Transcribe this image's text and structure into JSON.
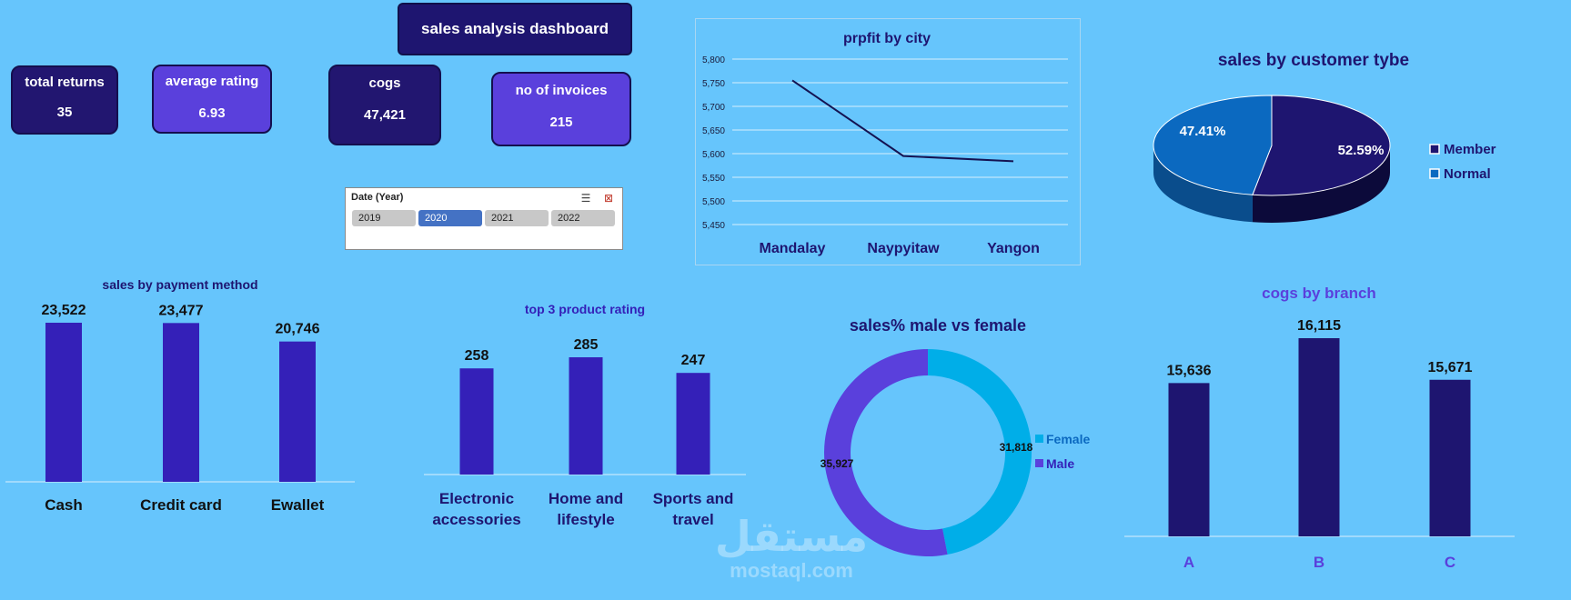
{
  "dashboard_title": "sales analysis dashboard",
  "kpis": {
    "total_returns": {
      "label": "total returns",
      "value": "35"
    },
    "average_rating": {
      "label": "average rating",
      "value": "6.93"
    },
    "cogs": {
      "label": "cogs",
      "value": "47,421"
    },
    "no_of_invoices": {
      "label": "no of invoices",
      "value": "215"
    }
  },
  "slicer": {
    "header": "Date (Year)",
    "options": [
      "2019",
      "2020",
      "2021",
      "2022"
    ],
    "selected": "2020"
  },
  "watermark": {
    "arabic": "مستقل",
    "latin": "mostaql.com"
  },
  "colors": {
    "dark_navy": "#221670",
    "purple": "#5a40dc",
    "bar_blue": "#3420b8",
    "cyan": "#00aee8",
    "normal_blue": "#0b69c0"
  },
  "chart_data": [
    {
      "id": "profit_by_city",
      "type": "line",
      "title": "prpfit by city",
      "categories": [
        "Mandalay",
        "Naypyitaw",
        "Yangon"
      ],
      "values": [
        5755,
        5595,
        5584
      ],
      "ylim": [
        5450,
        5800
      ],
      "yticks": [
        "5,450",
        "5,500",
        "5,550",
        "5,600",
        "5,650",
        "5,700",
        "5,750",
        "5,800"
      ],
      "grid": true
    },
    {
      "id": "sales_by_customer_type",
      "type": "pie",
      "title": "sales by customer tybe",
      "labels": [
        "Member",
        "Normal"
      ],
      "values": [
        52.59,
        47.41
      ],
      "value_labels": [
        "52.59%",
        "47.41%"
      ],
      "legend": "right"
    },
    {
      "id": "sales_by_payment_method",
      "type": "bar",
      "title": "sales by payment method",
      "categories": [
        "Cash",
        "Credit card",
        "Ewallet"
      ],
      "values": [
        23522,
        23477,
        20746
      ],
      "value_labels": [
        "23,522",
        "23,477",
        "20,746"
      ]
    },
    {
      "id": "top_3_product_rating",
      "type": "bar",
      "title": "top 3 product rating",
      "categories": [
        "Electronic accessories",
        "Home and lifestyle",
        "Sports and travel"
      ],
      "category_lines": [
        [
          "Electronic",
          "accessories"
        ],
        [
          "Home and",
          "lifestyle"
        ],
        [
          "Sports and",
          "travel"
        ]
      ],
      "values": [
        258,
        285,
        247
      ],
      "value_labels": [
        "258",
        "285",
        "247"
      ]
    },
    {
      "id": "sales_male_vs_female",
      "type": "pie",
      "title": "sales% male vs female",
      "labels": [
        "Female",
        "Male"
      ],
      "values": [
        31818,
        35927
      ],
      "value_labels": [
        "31,818",
        "35,927"
      ],
      "legend": "right"
    },
    {
      "id": "cogs_by_branch",
      "type": "bar",
      "title": "cogs by branch",
      "categories": [
        "A",
        "B",
        "C"
      ],
      "values": [
        15636,
        16115,
        15671
      ],
      "value_labels": [
        "15,636",
        "16,115",
        "15,671"
      ]
    }
  ]
}
